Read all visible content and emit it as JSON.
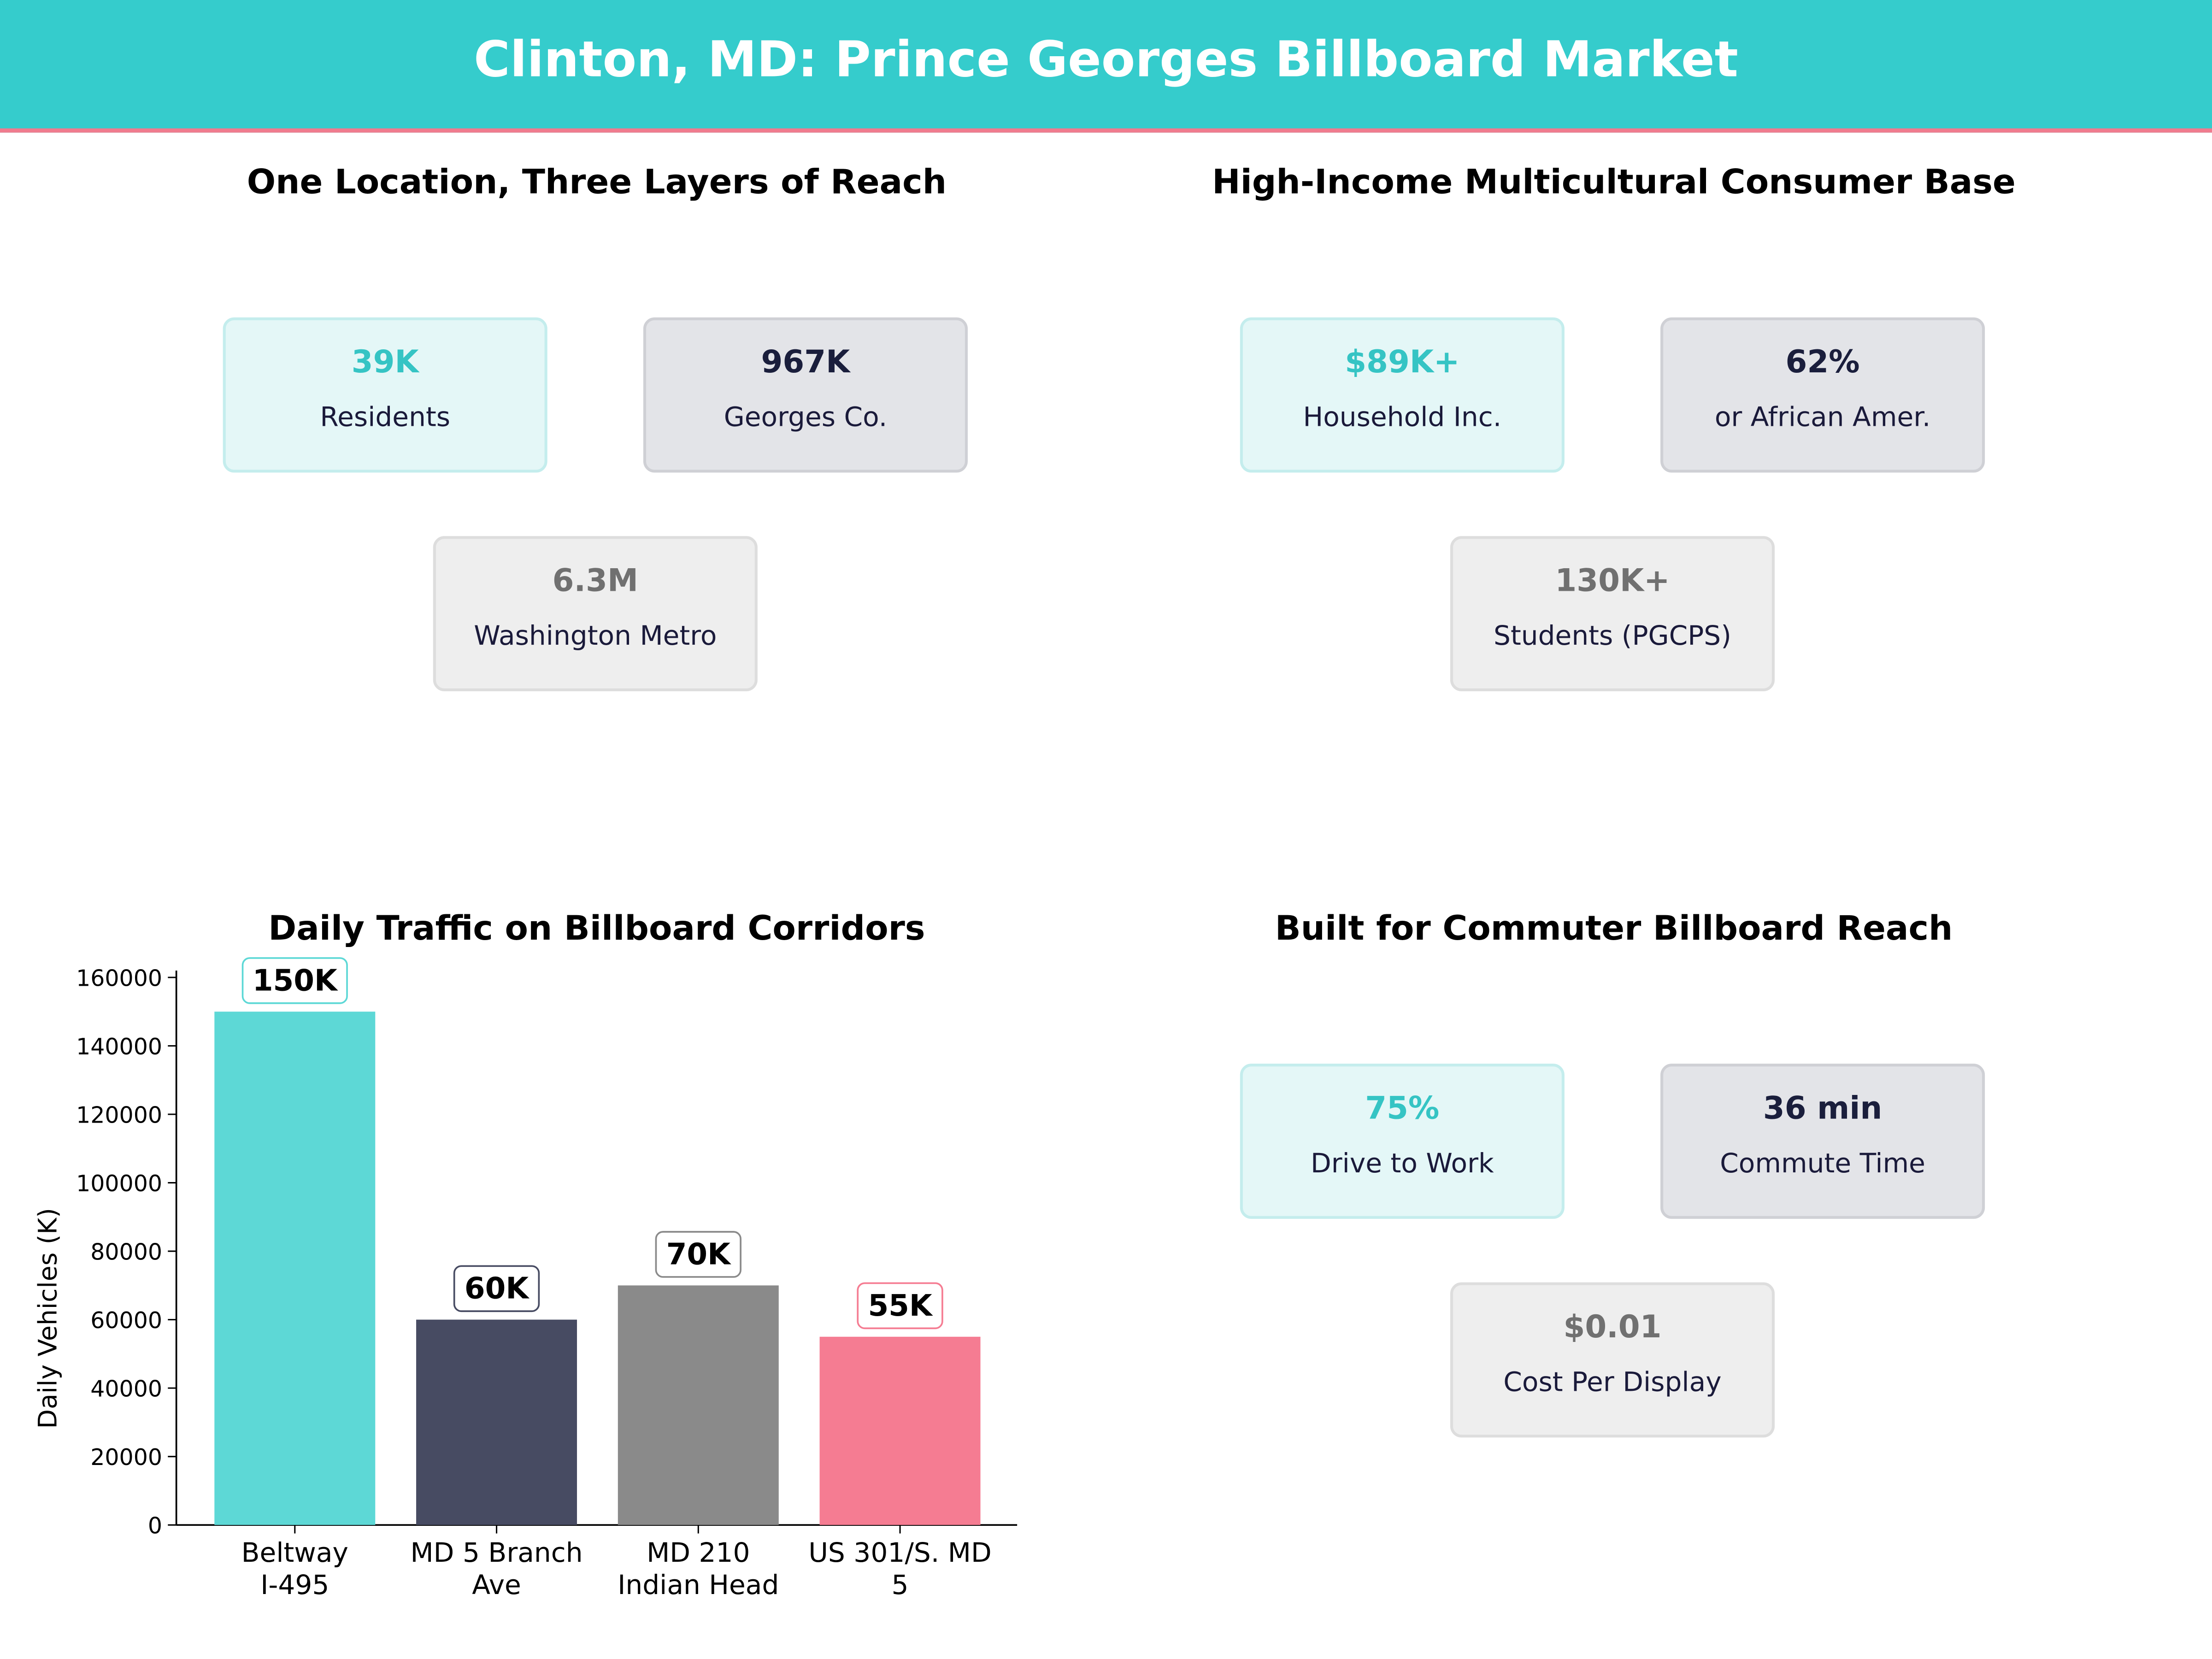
{
  "header": {
    "title": "Clinton, MD: Prince Georges Billboard Market",
    "bg_color": "#35cccc",
    "accent_line_color": "#f07b8e"
  },
  "panels": {
    "reach": {
      "title": "One Location, Three Layers of Reach",
      "cards": [
        {
          "value": "39K",
          "label": "Residents",
          "style": "teal"
        },
        {
          "value": "967K",
          "label": "Georges Co.",
          "style": "navy"
        },
        {
          "value": "6.3M",
          "label": "Washington Metro",
          "style": "gray"
        }
      ]
    },
    "consumer": {
      "title": "High-Income Multicultural Consumer Base",
      "cards": [
        {
          "value": "$89K+",
          "label": "Household Inc.",
          "style": "teal"
        },
        {
          "value": "62%",
          "label": "or African Amer.",
          "style": "navy"
        },
        {
          "value": "130K+",
          "label": "Students (PGCPS)",
          "style": "gray"
        }
      ]
    },
    "commuter": {
      "title": "Built for Commuter Billboard Reach",
      "cards": [
        {
          "value": "75%",
          "label": "Drive to Work",
          "style": "teal"
        },
        {
          "value": "36 min",
          "label": "Commute Time",
          "style": "navy"
        },
        {
          "value": "$0.01",
          "label": "Cost Per Display",
          "style": "gray"
        }
      ]
    }
  },
  "chart_data": {
    "type": "bar",
    "title": "Daily Traffic on Billboard Corridors",
    "xlabel": "",
    "ylabel": "Daily Vehicles (K)",
    "categories": [
      [
        "Beltway",
        "I-495"
      ],
      [
        "MD 5 Branch",
        "Ave"
      ],
      [
        "MD 210",
        "Indian Head"
      ],
      [
        "US 301/S. MD",
        "5"
      ]
    ],
    "values": [
      150000,
      60000,
      70000,
      55000
    ],
    "data_labels": [
      "150K",
      "60K",
      "70K",
      "55K"
    ],
    "colors": [
      "#5dd8d6",
      "#474b62",
      "#8a8a8a",
      "#f57c92"
    ],
    "ylim": [
      0,
      162000
    ],
    "yticks": [
      0,
      20000,
      40000,
      60000,
      80000,
      100000,
      120000,
      140000,
      160000
    ],
    "grid": false
  }
}
